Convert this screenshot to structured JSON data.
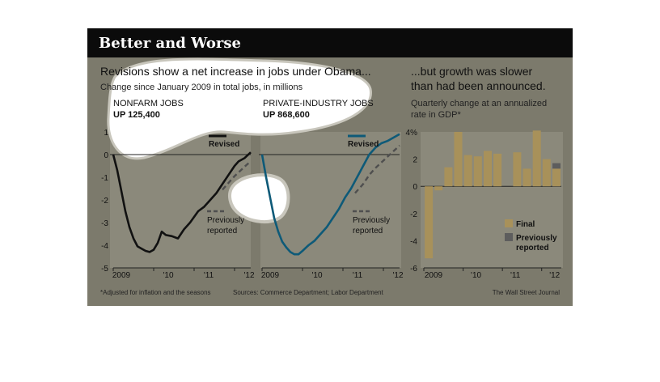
{
  "figure": {
    "title": "Better and Worse",
    "footnote": "*Adjusted for inflation and the seasons",
    "sources": "Sources: Commerce Department; Labor Department",
    "credit": "The Wall Street Journal",
    "colors": {
      "background": "#7c7a6c",
      "title_bar": "#0b0b0b",
      "nonfarm": "#111111",
      "private": "#0e5a78",
      "previous": "#4f4f4f",
      "final": "#a8915a",
      "prev_bar": "#5d5d5d",
      "blob": "#ffffff"
    }
  },
  "left_panel": {
    "heading": "Revisions show a net increase in jobs under Obama...",
    "subheading": "Change since January 2009 in total jobs, in millions"
  },
  "right_panel": {
    "heading_line1": "...but growth was slower",
    "heading_line2": "than had been announced.",
    "subheading_line1": "Quarterly change at an annualized",
    "subheading_line2": "rate in GDP*"
  },
  "chart_data": [
    {
      "type": "line",
      "panel": "nonfarm",
      "title": "NONFARM JOBS",
      "subtitle": "UP 125,400",
      "ylim": [
        -5,
        1
      ],
      "y_ticks": [
        "1",
        "0",
        "-1",
        "-2",
        "-3",
        "-4",
        "-5"
      ],
      "x_ticks": [
        "2009",
        "'10",
        "'11",
        "'12"
      ],
      "x_labels_top": [
        "Revised"
      ],
      "legend_previous": [
        "Previously",
        "reported"
      ],
      "series": [
        {
          "name": "Revised",
          "x": [
            2009.0,
            2009.1,
            2009.2,
            2009.3,
            2009.4,
            2009.5,
            2009.6,
            2009.7,
            2009.8,
            2009.9,
            2010.0,
            2010.1,
            2010.2,
            2010.3,
            2010.45,
            2010.6,
            2010.75,
            2010.9,
            2011.1,
            2011.25,
            2011.4,
            2011.55,
            2011.7,
            2011.85,
            2012.0,
            2012.1,
            2012.25,
            2012.4
          ],
          "y": [
            0.0,
            -0.7,
            -1.6,
            -2.5,
            -3.2,
            -3.7,
            -4.05,
            -4.15,
            -4.25,
            -4.3,
            -4.2,
            -3.9,
            -3.4,
            -3.55,
            -3.6,
            -3.7,
            -3.3,
            -3.0,
            -2.5,
            -2.3,
            -2.0,
            -1.7,
            -1.3,
            -0.9,
            -0.5,
            -0.3,
            -0.15,
            0.1
          ]
        },
        {
          "name": "Previously reported",
          "x": [
            2011.7,
            2011.85,
            2012.0,
            2012.15,
            2012.3,
            2012.4
          ],
          "y": [
            -1.55,
            -1.25,
            -0.95,
            -0.7,
            -0.45,
            -0.3
          ]
        }
      ]
    },
    {
      "type": "line",
      "panel": "private",
      "title": "PRIVATE-INDUSTRY JOBS",
      "subtitle": "UP 868,600",
      "ylim": [
        -5,
        1
      ],
      "x_ticks": [
        "2009",
        "'10",
        "'11",
        "'12"
      ],
      "x_labels_top": [
        "Revised"
      ],
      "legend_previous": [
        "Previously",
        "reported"
      ],
      "series": [
        {
          "name": "Revised",
          "x": [
            2009.0,
            2009.1,
            2009.2,
            2009.3,
            2009.4,
            2009.5,
            2009.6,
            2009.7,
            2009.8,
            2009.9,
            2010.0,
            2010.15,
            2010.3,
            2010.45,
            2010.6,
            2010.75,
            2010.9,
            2011.05,
            2011.2,
            2011.35,
            2011.5,
            2011.65,
            2011.8,
            2011.95,
            2012.1,
            2012.25,
            2012.4
          ],
          "y": [
            0.0,
            -1.0,
            -1.9,
            -2.8,
            -3.4,
            -3.85,
            -4.1,
            -4.3,
            -4.4,
            -4.4,
            -4.25,
            -4.0,
            -3.8,
            -3.5,
            -3.2,
            -2.8,
            -2.4,
            -1.9,
            -1.5,
            -1.0,
            -0.5,
            0.0,
            0.3,
            0.5,
            0.6,
            0.75,
            0.9
          ]
        },
        {
          "name": "Previously reported",
          "x": [
            2011.3,
            2011.5,
            2011.65,
            2011.8,
            2011.95,
            2012.1,
            2012.25,
            2012.4
          ],
          "y": [
            -1.7,
            -1.3,
            -0.9,
            -0.6,
            -0.35,
            -0.1,
            0.15,
            0.4
          ]
        }
      ]
    },
    {
      "type": "bar",
      "panel": "gdp",
      "ylim": [
        -6,
        4
      ],
      "y_ticks": [
        "4%",
        "2",
        "0",
        "-2",
        "-4",
        "-6"
      ],
      "x_ticks": [
        "2009",
        "'10",
        "'11",
        "'12"
      ],
      "categories": [
        "2009 Q1",
        "2009 Q2",
        "2009 Q3",
        "2009 Q4",
        "2010 Q1",
        "2010 Q2",
        "2010 Q3",
        "2010 Q4",
        "2011 Q1",
        "2011 Q2",
        "2011 Q3",
        "2011 Q4",
        "2012 Q1",
        "2012 Q2"
      ],
      "series": [
        {
          "name": "Final",
          "values": [
            -5.3,
            -0.3,
            1.4,
            4.0,
            2.3,
            2.2,
            2.6,
            2.4,
            0.0,
            2.5,
            1.3,
            4.1,
            2.0,
            1.3
          ]
        },
        {
          "name": "Previously reported",
          "values": [
            null,
            null,
            null,
            null,
            null,
            null,
            null,
            null,
            null,
            null,
            null,
            null,
            1.7,
            null
          ]
        }
      ],
      "legend": [
        "Final",
        "Previously reported"
      ]
    }
  ]
}
